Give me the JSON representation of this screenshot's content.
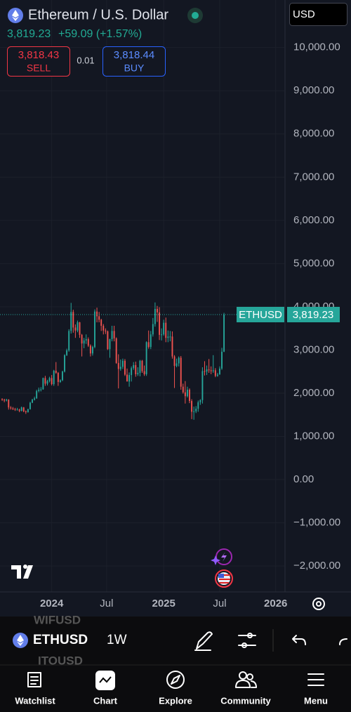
{
  "header": {
    "title": "Ethereum / U.S. Dollar",
    "price": "3,819.23",
    "change": "+59.09 (+1.57%)",
    "currency": "USD",
    "sell": {
      "price": "3,818.43",
      "label": "SELL"
    },
    "spread": "0.01",
    "buy": {
      "price": "3,818.44",
      "label": "BUY"
    }
  },
  "chart_data": {
    "type": "candlestick",
    "up_color": "#26a69a",
    "down_color": "#ef5350",
    "grid": true,
    "last_price": {
      "symbol": "ETHUSD",
      "label": "3,819.23"
    },
    "xlim": [
      -1,
      131
    ],
    "xticks": [
      {
        "value": 23,
        "label": "2024"
      },
      {
        "value": 48.5,
        "label": "Jul"
      },
      {
        "value": 75,
        "label": "2025"
      },
      {
        "value": 101,
        "label": "Jul"
      },
      {
        "value": 127,
        "label": "2026"
      }
    ],
    "ylim": [
      -2600,
      11100
    ],
    "yticks": [
      {
        "value": 10000,
        "label": "10,000.00"
      },
      {
        "value": 9000,
        "label": "9,000.00"
      },
      {
        "value": 8000,
        "label": "8,000.00"
      },
      {
        "value": 7000,
        "label": "7,000.00"
      },
      {
        "value": 6000,
        "label": "6,000.00"
      },
      {
        "value": 5000,
        "label": "5,000.00"
      },
      {
        "value": 4000,
        "label": "4,000.00"
      },
      {
        "value": 3000,
        "label": "3,000.00"
      },
      {
        "value": 2000,
        "label": "2,000.00"
      },
      {
        "value": 1000,
        "label": "1,000.00"
      },
      {
        "value": 0,
        "label": "0.00"
      },
      {
        "value": -1000,
        "label": "−1,000.00"
      },
      {
        "value": -2000,
        "label": "−2,000.00"
      }
    ],
    "x": [
      0,
      1,
      2,
      3,
      4,
      5,
      6,
      7,
      8,
      9,
      10,
      11,
      12,
      13,
      14,
      15,
      16,
      17,
      18,
      19,
      20,
      21,
      22,
      23,
      24,
      25,
      26,
      27,
      28,
      29,
      30,
      31,
      32,
      33,
      34,
      35,
      36,
      37,
      38,
      39,
      40,
      41,
      42,
      43,
      44,
      45,
      46,
      47,
      48,
      49,
      50,
      51,
      52,
      53,
      54,
      55,
      56,
      57,
      58,
      59,
      60,
      61,
      62,
      63,
      64,
      65,
      66,
      67,
      68,
      69,
      70,
      71,
      72,
      73,
      74,
      75,
      76,
      77,
      78,
      79,
      80,
      81,
      82,
      83,
      84,
      85,
      86,
      87,
      88,
      89,
      90,
      91,
      92,
      93,
      94,
      95,
      96,
      97,
      98,
      99,
      100,
      101,
      102,
      103
    ],
    "open": [
      1870,
      1850,
      1830,
      1850,
      1670,
      1650,
      1630,
      1620,
      1620,
      1590,
      1670,
      1580,
      1560,
      1630,
      1780,
      1850,
      1880,
      2050,
      2080,
      2090,
      2350,
      2220,
      2280,
      2350,
      2210,
      2520,
      2470,
      2260,
      2300,
      2500,
      2880,
      2990,
      3440,
      3880,
      3520,
      3450,
      3640,
      3350,
      3150,
      3220,
      3250,
      3100,
      2920,
      3070,
      3890,
      3780,
      3700,
      3560,
      3450,
      3430,
      3020,
      3250,
      3440,
      3270,
      2700,
      2560,
      2610,
      2750,
      2430,
      2270,
      2420,
      2580,
      2650,
      2440,
      2470,
      2750,
      2510,
      2440,
      3180,
      3070,
      3360,
      3600,
      3950,
      3870,
      3350,
      3360,
      3630,
      3280,
      3310,
      3310,
      2850,
      2630,
      2690,
      2820,
      2150,
      2020,
      1930,
      2080,
      1820,
      1570,
      1580,
      1640,
      1790,
      1840,
      2510,
      2500,
      2550,
      2530,
      2510,
      2530,
      2400,
      2430,
      2570,
      2960
    ],
    "high": [
      1880,
      1870,
      1870,
      1860,
      1700,
      1680,
      1660,
      1660,
      1640,
      1690,
      1680,
      1600,
      1640,
      1800,
      1870,
      1920,
      2080,
      2130,
      2140,
      2360,
      2400,
      2310,
      2380,
      2420,
      2540,
      2720,
      2490,
      2320,
      2520,
      2900,
      3030,
      3480,
      4090,
      3930,
      3590,
      3680,
      3650,
      3370,
      3280,
      3360,
      3290,
      3130,
      3100,
      3940,
      3980,
      3880,
      3720,
      3600,
      3500,
      3450,
      3260,
      3560,
      3560,
      3290,
      2900,
      2780,
      2800,
      2790,
      2570,
      2480,
      2620,
      2720,
      2730,
      2600,
      2770,
      2770,
      2640,
      3200,
      3450,
      3440,
      3740,
      4100,
      4020,
      3990,
      3500,
      3700,
      3750,
      3450,
      3440,
      3430,
      2880,
      2800,
      2850,
      2860,
      2220,
      2280,
      2150,
      2110,
      1860,
      1690,
      1700,
      1830,
      1860,
      2600,
      2740,
      2640,
      2790,
      2620,
      2880,
      2580,
      2470,
      2620,
      3050,
      3860
    ],
    "low": [
      1820,
      1790,
      1810,
      1620,
      1620,
      1610,
      1590,
      1600,
      1560,
      1580,
      1560,
      1520,
      1550,
      1620,
      1770,
      1830,
      1870,
      2020,
      2040,
      2080,
      2170,
      2180,
      2250,
      2180,
      2170,
      2450,
      2170,
      2240,
      2280,
      2480,
      2860,
      2960,
      3380,
      3400,
      3280,
      3410,
      3280,
      2850,
      3040,
      3140,
      3070,
      2850,
      2870,
      3040,
      3640,
      3640,
      3440,
      3360,
      3370,
      3000,
      2820,
      3200,
      3200,
      2680,
      2110,
      2520,
      2560,
      2400,
      2340,
      2150,
      2270,
      2540,
      2380,
      2400,
      2390,
      2470,
      2400,
      2400,
      3030,
      3020,
      3310,
      3540,
      3650,
      3230,
      3220,
      3330,
      3180,
      3180,
      3200,
      2800,
      2120,
      2600,
      2620,
      2080,
      1990,
      1760,
      1900,
      1770,
      1400,
      1385,
      1540,
      1570,
      1730,
      1760,
      2410,
      2420,
      2470,
      2440,
      2470,
      2370,
      2380,
      2430,
      2540,
      2950
    ],
    "close": [
      1850,
      1830,
      1850,
      1670,
      1650,
      1630,
      1620,
      1620,
      1590,
      1670,
      1580,
      1560,
      1630,
      1780,
      1850,
      1880,
      2050,
      2080,
      2090,
      2350,
      2220,
      2280,
      2350,
      2210,
      2520,
      2470,
      2260,
      2300,
      2500,
      2880,
      2990,
      3440,
      3880,
      3520,
      3450,
      3640,
      3350,
      3150,
      3220,
      3250,
      3100,
      2920,
      3070,
      3890,
      3780,
      3700,
      3560,
      3450,
      3430,
      3020,
      3250,
      3440,
      3270,
      2700,
      2560,
      2610,
      2750,
      2430,
      2270,
      2420,
      2580,
      2650,
      2440,
      2470,
      2750,
      2510,
      2440,
      3180,
      3070,
      3360,
      3600,
      3950,
      3870,
      3350,
      3360,
      3630,
      3280,
      3310,
      3310,
      2850,
      2630,
      2690,
      2820,
      2150,
      2020,
      1930,
      2080,
      1820,
      1570,
      1580,
      1640,
      1790,
      1840,
      2510,
      2500,
      2550,
      2530,
      2510,
      2530,
      2400,
      2430,
      2570,
      2960,
      3819.23
    ]
  },
  "toolbar": {
    "symbol": "ETHUSD",
    "interval": "1W",
    "ghost_above": "WIFUSD",
    "ghost_below": "ITOUSD"
  },
  "nav": [
    "Watchlist",
    "Chart",
    "Explore",
    "Community",
    "Menu"
  ]
}
